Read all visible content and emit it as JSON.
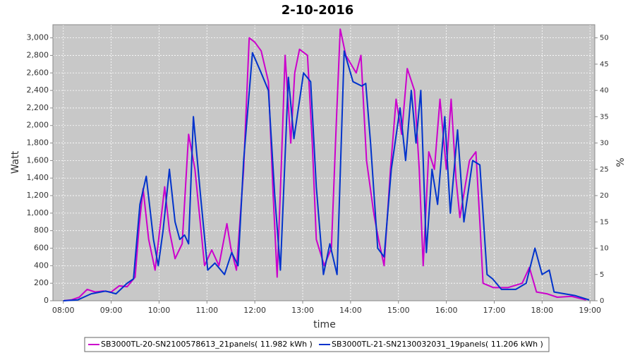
{
  "chart_data": {
    "type": "line",
    "title": "2-10-2016",
    "x_label": "time",
    "y_label": "Watt",
    "y2_label": "%",
    "xlim": [
      "07:47",
      "19:06"
    ],
    "xticks": [
      "08:00",
      "09:00",
      "10:00",
      "11:00",
      "12:00",
      "13:00",
      "14:00",
      "15:00",
      "16:00",
      "17:00",
      "18:00",
      "19:00"
    ],
    "ylim": [
      0,
      3150
    ],
    "yticks": [
      0,
      200,
      400,
      600,
      800,
      {
        "value": 1000,
        "label": "1,000"
      },
      {
        "value": 1200,
        "label": "1,200"
      },
      {
        "value": 1400,
        "label": "1,400"
      },
      {
        "value": 1600,
        "label": "1,600"
      },
      {
        "value": 1800,
        "label": "1,800"
      },
      {
        "value": 2000,
        "label": "2,000"
      },
      {
        "value": 2200,
        "label": "2,200"
      },
      {
        "value": 2400,
        "label": "2,400"
      },
      {
        "value": 2600,
        "label": "2,600"
      },
      {
        "value": 2800,
        "label": "2,800"
      },
      {
        "value": 3000,
        "label": "3,000"
      }
    ],
    "y2lim": [
      0,
      52.5
    ],
    "y2ticks": [
      0,
      5,
      10,
      15,
      20,
      25,
      30,
      35,
      40,
      45,
      50
    ],
    "grid": true,
    "legend": "bottom",
    "series": [
      {
        "name": "SB3000TL-20-SN2100578613_21panels( 11.982 kWh )",
        "color": "#cc00cc",
        "x": [
          "08:00",
          "08:10",
          "08:20",
          "08:30",
          "08:40",
          "08:50",
          "09:00",
          "09:10",
          "09:20",
          "09:30",
          "09:35",
          "09:40",
          "09:47",
          "09:55",
          "10:02",
          "10:07",
          "10:13",
          "10:20",
          "10:29",
          "10:37",
          "10:45",
          "10:57",
          "11:06",
          "11:15",
          "11:25",
          "11:30",
          "11:37",
          "11:46",
          "11:53",
          "12:00",
          "12:08",
          "12:17",
          "12:23",
          "12:28",
          "12:33",
          "12:38",
          "12:45",
          "12:50",
          "12:56",
          "13:06",
          "13:12",
          "13:17",
          "13:27",
          "13:36",
          "13:42",
          "13:47",
          "13:54",
          "14:07",
          "14:13",
          "14:20",
          "14:29",
          "14:35",
          "14:42",
          "14:50",
          "14:57",
          "15:04",
          "15:11",
          "15:20",
          "15:26",
          "15:31",
          "15:38",
          "15:45",
          "15:52",
          "16:00",
          "16:06",
          "16:12",
          "16:17",
          "16:29",
          "16:37",
          "16:42",
          "16:46",
          "16:59",
          "17:17",
          "17:35",
          "17:44",
          "17:53",
          "18:06",
          "18:19",
          "18:37",
          "18:55"
        ],
        "values": [
          0,
          10,
          40,
          130,
          100,
          110,
          100,
          170,
          160,
          270,
          850,
          1280,
          700,
          350,
          900,
          1300,
          800,
          480,
          650,
          1900,
          1500,
          400,
          580,
          400,
          880,
          600,
          350,
          1500,
          3000,
          2950,
          2850,
          2500,
          1200,
          270,
          1500,
          2800,
          1800,
          2600,
          2870,
          2800,
          1800,
          700,
          400,
          600,
          2000,
          3100,
          2800,
          2600,
          2800,
          1600,
          1000,
          700,
          400,
          1500,
          2300,
          1900,
          2650,
          2400,
          1500,
          400,
          1700,
          1500,
          2300,
          1500,
          2300,
          1400,
          950,
          1600,
          1700,
          900,
          200,
          150,
          150,
          200,
          380,
          100,
          80,
          40,
          50,
          10
        ]
      },
      {
        "name": "SB3000TL-21-SN2130032031_19panels( 11.206 kWh )",
        "color": "#0033cc",
        "x": [
          "08:00",
          "08:18",
          "08:35",
          "08:53",
          "09:06",
          "09:20",
          "09:28",
          "09:36",
          "09:44",
          "09:53",
          "09:59",
          "10:05",
          "10:13",
          "10:20",
          "10:26",
          "10:32",
          "10:37",
          "10:43",
          "10:52",
          "11:01",
          "11:10",
          "11:22",
          "11:31",
          "11:39",
          "11:46",
          "11:57",
          "12:08",
          "12:17",
          "12:25",
          "12:32",
          "12:42",
          "12:49",
          "13:01",
          "13:10",
          "13:17",
          "13:26",
          "13:34",
          "13:43",
          "13:52",
          "14:03",
          "14:14",
          "14:19",
          "14:25",
          "14:34",
          "14:42",
          "14:51",
          "15:02",
          "15:09",
          "15:16",
          "15:22",
          "15:28",
          "15:35",
          "15:42",
          "15:49",
          "15:58",
          "16:05",
          "16:14",
          "16:22",
          "16:33",
          "16:42",
          "16:51",
          "16:58",
          "17:09",
          "17:27",
          "17:40",
          "17:51",
          "18:00",
          "18:09",
          "18:15",
          "18:28",
          "18:41",
          "18:59"
        ],
        "values": [
          0,
          10,
          80,
          110,
          80,
          200,
          250,
          1100,
          1420,
          700,
          400,
          800,
          1500,
          900,
          700,
          750,
          650,
          2100,
          1200,
          350,
          430,
          300,
          550,
          400,
          1600,
          2830,
          2600,
          2400,
          1200,
          350,
          2550,
          1850,
          2600,
          2500,
          1300,
          300,
          650,
          300,
          2850,
          2500,
          2450,
          2480,
          1800,
          600,
          500,
          1500,
          2200,
          1600,
          2400,
          1800,
          2400,
          550,
          1500,
          1100,
          2100,
          1000,
          1950,
          900,
          1600,
          1550,
          300,
          250,
          130,
          130,
          200,
          600,
          300,
          350,
          100,
          80,
          60,
          10
        ]
      }
    ]
  }
}
